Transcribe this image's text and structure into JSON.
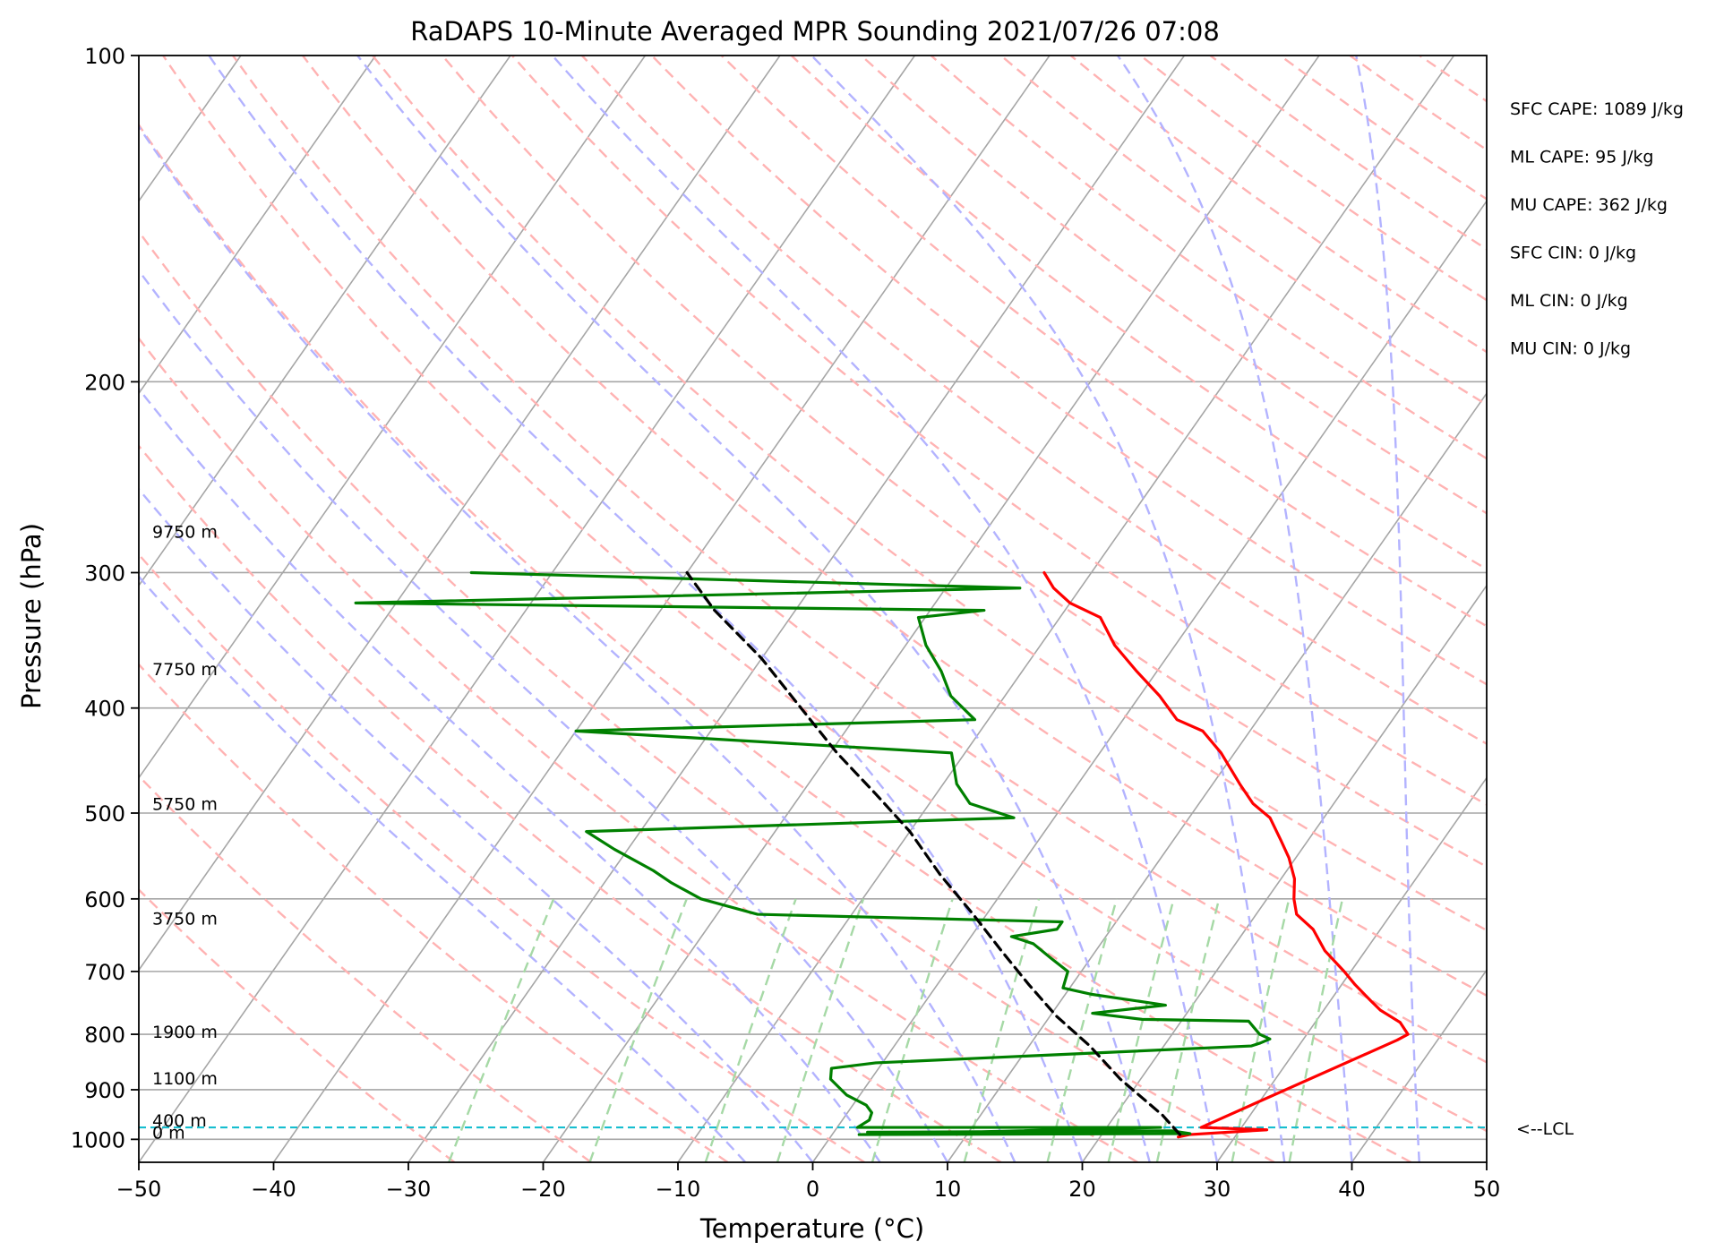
{
  "chart_data": {
    "type": "line",
    "title": "RaDAPS 10-Minute Averaged MPR Sounding 2021/07/26 07:08",
    "xlabel": "Temperature (°C)",
    "ylabel": "Pressure (hPa)",
    "xlim": [
      -50,
      50
    ],
    "ylim": [
      1050,
      100
    ],
    "y_scale": "log",
    "skew": "skew-T log-p",
    "grid": true,
    "x_ticks": [
      "−50",
      "−40",
      "−30",
      "−20",
      "−10",
      "0",
      "10",
      "20",
      "30",
      "40",
      "50"
    ],
    "y_ticks": [
      {
        "p": 100,
        "label": "100"
      },
      {
        "p": 200,
        "label": "200"
      },
      {
        "p": 300,
        "label": "300"
      },
      {
        "p": 400,
        "label": "400"
      },
      {
        "p": 500,
        "label": "500"
      },
      {
        "p": 600,
        "label": "600"
      },
      {
        "p": 700,
        "label": "700"
      },
      {
        "p": 800,
        "label": "800"
      },
      {
        "p": 900,
        "label": "900"
      },
      {
        "p": 1000,
        "label": "1000"
      }
    ],
    "height_labels": [
      {
        "p": 985,
        "label": "0 m"
      },
      {
        "p": 960,
        "label": "400 m"
      },
      {
        "p": 878,
        "label": "1100 m"
      },
      {
        "p": 795,
        "label": "1900 m"
      },
      {
        "p": 625,
        "label": "3750 m"
      },
      {
        "p": 490,
        "label": "5750 m"
      },
      {
        "p": 368,
        "label": "7750 m"
      },
      {
        "p": 275,
        "label": "9750 m"
      }
    ],
    "lcl": {
      "p": 975,
      "label": "<--LCL"
    },
    "indices": [
      "SFC CAPE: 1089 J/kg",
      "ML CAPE: 95 J/kg",
      "MU CAPE: 362 J/kg",
      "SFC CIN: 0 J/kg",
      "ML CIN: 0 J/kg",
      "MU CIN: 0 J/kg"
    ],
    "colors": {
      "temperature": "#ff0000",
      "dewpoint": "#008000",
      "parcel": "#000000",
      "lcl": "#17becf",
      "isotherm": "#a6a6a6",
      "dry_adiabat": "#ffb3b3",
      "moist_adiabat": "#b3b3ff",
      "mixing_ratio": "#a6d9a6"
    },
    "series": [
      {
        "key": "temperature",
        "points": [
          [
            25.8,
            995
          ],
          [
            26.5,
            990
          ],
          [
            32.0,
            980
          ],
          [
            27.0,
            975
          ],
          [
            37.0,
            810
          ],
          [
            37.5,
            800
          ],
          [
            36.3,
            780
          ],
          [
            34.2,
            760
          ],
          [
            33.0,
            745
          ],
          [
            31.0,
            720
          ],
          [
            29.5,
            700
          ],
          [
            27.0,
            670
          ],
          [
            25.0,
            640
          ],
          [
            23.0,
            620
          ],
          [
            22.0,
            600
          ],
          [
            21.0,
            575
          ],
          [
            19.5,
            550
          ],
          [
            18.0,
            530
          ],
          [
            16.0,
            505
          ],
          [
            14.0,
            490
          ],
          [
            12.0,
            470
          ],
          [
            9.0,
            440
          ],
          [
            6.5,
            420
          ],
          [
            4.0,
            410
          ],
          [
            1.5,
            390
          ],
          [
            -1.5,
            370
          ],
          [
            -4.5,
            350
          ],
          [
            -7.0,
            330
          ],
          [
            -10.0,
            320
          ],
          [
            -12.0,
            310
          ],
          [
            -13.5,
            300
          ]
        ]
      },
      {
        "key": "dewpoint",
        "points": [
          [
            2.5,
            985
          ],
          [
            25.0,
            982
          ],
          [
            26.5,
            988
          ],
          [
            2.0,
            990
          ],
          [
            24.0,
            975
          ],
          [
            1.5,
            975
          ],
          [
            2.0,
            960
          ],
          [
            1.8,
            945
          ],
          [
            1.0,
            930
          ],
          [
            -1.0,
            910
          ],
          [
            -3.0,
            880
          ],
          [
            -3.5,
            860
          ],
          [
            -0.5,
            850
          ],
          [
            26.5,
            820
          ],
          [
            27.0,
            815
          ],
          [
            27.5,
            808
          ],
          [
            26.5,
            800
          ],
          [
            25.0,
            778
          ],
          [
            17.0,
            775
          ],
          [
            13.0,
            765
          ],
          [
            18.0,
            752
          ],
          [
            12.0,
            735
          ],
          [
            9.5,
            725
          ],
          [
            9.0,
            700
          ],
          [
            7.0,
            680
          ],
          [
            5.0,
            660
          ],
          [
            3.0,
            650
          ],
          [
            6.0,
            640
          ],
          [
            6.0,
            630
          ],
          [
            -17.0,
            620
          ],
          [
            -22.0,
            600
          ],
          [
            -25.0,
            580
          ],
          [
            -27.0,
            565
          ],
          [
            -31.0,
            540
          ],
          [
            -34.0,
            520
          ],
          [
            -3.0,
            505
          ],
          [
            -7.0,
            490
          ],
          [
            -9.0,
            470
          ],
          [
            -11.0,
            440
          ],
          [
            -40.0,
            420
          ],
          [
            -11.0,
            410
          ],
          [
            -14.0,
            390
          ],
          [
            -16.0,
            370
          ],
          [
            -18.5,
            350
          ],
          [
            -20.5,
            330
          ],
          [
            -16.0,
            325
          ],
          [
            -63.0,
            320
          ],
          [
            -14.5,
            310
          ],
          [
            -56.0,
            300
          ]
        ]
      },
      {
        "key": "parcel",
        "points": [
          [
            25.8,
            990
          ],
          [
            23.5,
            950
          ],
          [
            18.5,
            880
          ],
          [
            14.5,
            820
          ],
          [
            10.5,
            770
          ],
          [
            6.8,
            720
          ],
          [
            3.0,
            670
          ],
          [
            -1.0,
            620
          ],
          [
            -5.5,
            570
          ],
          [
            -10.0,
            520
          ],
          [
            -14.5,
            480
          ],
          [
            -19.5,
            440
          ],
          [
            -24.5,
            400
          ],
          [
            -30.0,
            360
          ],
          [
            -36.0,
            325
          ],
          [
            -40.0,
            300
          ]
        ]
      }
    ]
  }
}
